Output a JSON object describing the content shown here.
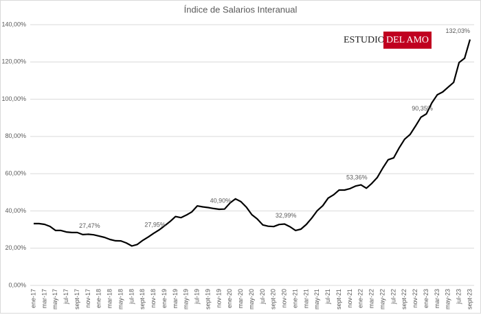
{
  "chart_data": {
    "type": "line",
    "title": "Índice de Salarios Interanual",
    "watermark": [
      "ESTUDIO",
      "DEL AMO"
    ],
    "categories": [
      "ene-17",
      null,
      "mar-17",
      null,
      "may-17",
      null,
      "jul-17",
      null,
      "sept-17",
      null,
      "nov-17",
      null,
      "ene-18",
      null,
      "mar-18",
      null,
      "may-18",
      null,
      "jul-18",
      null,
      "sept-18",
      null,
      "nov-18",
      null,
      "ene-19",
      null,
      "mar-19",
      null,
      "may-19",
      null,
      "jul-19",
      null,
      "sept-19",
      null,
      "nov-19",
      null,
      "ene-20",
      null,
      "mar-20",
      null,
      "may-20",
      null,
      "jul-20",
      null,
      "sept-20",
      null,
      "nov-20",
      null,
      "ene-21",
      null,
      "mar-21",
      null,
      "may-21",
      null,
      "jul-21",
      null,
      "sept-21",
      null,
      "nov-21",
      null,
      "ene-22",
      null,
      "mar-22",
      null,
      "may-22",
      null,
      "jul-22",
      null,
      "sept-22",
      null,
      "nov-22",
      null,
      "ene-23",
      null,
      "mar-23",
      null,
      "may-23",
      null,
      "jul-23",
      null,
      "sept-23"
    ],
    "values": [
      33.2,
      33.2,
      32.8,
      31.7,
      29.5,
      29.5,
      28.7,
      28.4,
      28.4,
      27.3,
      27.47,
      27.2,
      26.5,
      25.8,
      24.7,
      24.0,
      23.9,
      22.8,
      21.2,
      22.0,
      24.2,
      26.0,
      27.95,
      29.8,
      32.0,
      34.3,
      37.0,
      36.4,
      37.8,
      39.5,
      42.7,
      42.2,
      41.8,
      41.3,
      40.9,
      41.0,
      44.3,
      46.5,
      45.0,
      42.0,
      38.0,
      35.7,
      32.5,
      31.8,
      31.6,
      32.7,
      32.99,
      31.5,
      29.5,
      30.2,
      32.8,
      36.2,
      40.2,
      42.8,
      46.9,
      48.7,
      51.2,
      51.2,
      52.0,
      53.36,
      54.0,
      52.2,
      54.8,
      58.0,
      63.0,
      67.5,
      68.5,
      73.8,
      78.5,
      81.0,
      85.5,
      90.35,
      92.1,
      98.0,
      102.4,
      103.9,
      106.5,
      109.0,
      119.7,
      122.0,
      132.03
    ],
    "value_labels": [
      null,
      null,
      null,
      null,
      null,
      null,
      null,
      null,
      null,
      null,
      "27,47%",
      null,
      null,
      null,
      null,
      null,
      null,
      null,
      null,
      null,
      null,
      null,
      "27,95%",
      null,
      null,
      null,
      null,
      null,
      null,
      null,
      null,
      null,
      null,
      null,
      "40,90%",
      null,
      null,
      null,
      null,
      null,
      null,
      null,
      null,
      null,
      null,
      null,
      "32,99%",
      null,
      null,
      null,
      null,
      null,
      null,
      null,
      null,
      null,
      null,
      null,
      null,
      "53,36%",
      null,
      null,
      null,
      null,
      null,
      null,
      null,
      null,
      null,
      null,
      null,
      "90,35%",
      null,
      null,
      null,
      null,
      null,
      null,
      null,
      null,
      "132,03%"
    ],
    "color": "#000000",
    "ylim": [
      0,
      140
    ],
    "yticks": [
      {
        "value": 0,
        "label": "0,00%"
      },
      {
        "value": 20,
        "label": "20,00%"
      },
      {
        "value": 40,
        "label": "40,00%"
      },
      {
        "value": 60,
        "label": "60,00%"
      },
      {
        "value": 80,
        "label": "80,00%"
      },
      {
        "value": 100,
        "label": "100,00%"
      },
      {
        "value": 120,
        "label": "120,00%"
      },
      {
        "value": 140,
        "label": "140,00%"
      }
    ],
    "grid": true
  }
}
